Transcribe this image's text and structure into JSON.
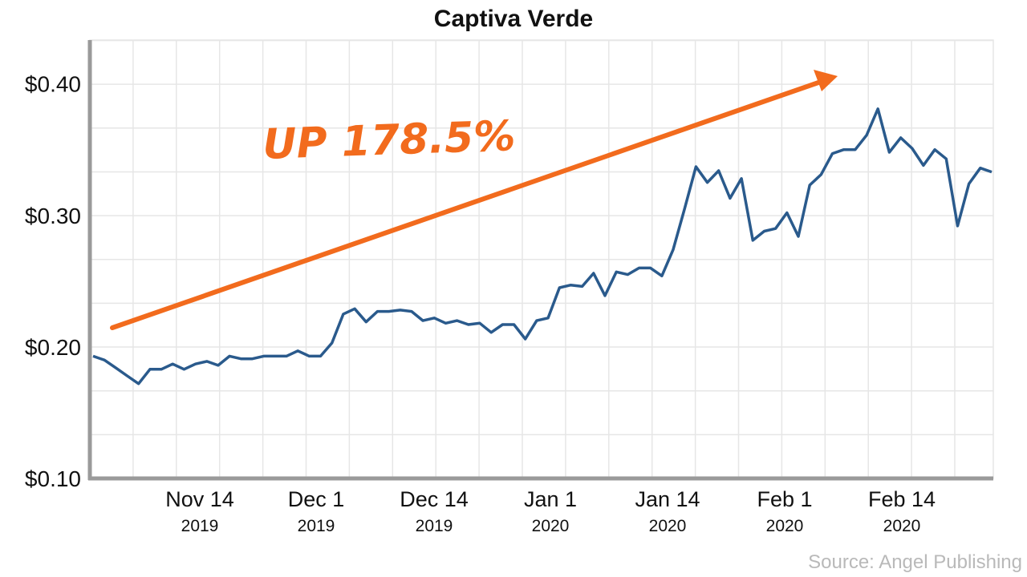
{
  "chart_data": {
    "type": "line",
    "title": "Captiva Verde",
    "xlabel": "",
    "ylabel": "",
    "ylim": [
      0.1,
      0.4
    ],
    "yticks": [
      "$0.10",
      "$0.20",
      "$0.30",
      "$0.40"
    ],
    "xticks": [
      {
        "label": "Nov 14",
        "year": "2019"
      },
      {
        "label": "Dec 1",
        "year": "2019"
      },
      {
        "label": "Dec 14",
        "year": "2019"
      },
      {
        "label": "Jan 1",
        "year": "2020"
      },
      {
        "label": "Jan 14",
        "year": "2020"
      },
      {
        "label": "Feb 1",
        "year": "2020"
      },
      {
        "label": "Feb 14",
        "year": "2020"
      }
    ],
    "grid": true,
    "series": [
      {
        "color": "#2a5a8c",
        "values": [
          0.193,
          0.19,
          0.184,
          0.178,
          0.172,
          0.183,
          0.183,
          0.187,
          0.183,
          0.187,
          0.189,
          0.186,
          0.193,
          0.191,
          0.191,
          0.193,
          0.193,
          0.193,
          0.197,
          0.193,
          0.193,
          0.203,
          0.225,
          0.229,
          0.219,
          0.227,
          0.227,
          0.228,
          0.227,
          0.22,
          0.222,
          0.218,
          0.22,
          0.217,
          0.218,
          0.211,
          0.217,
          0.217,
          0.206,
          0.22,
          0.222,
          0.245,
          0.247,
          0.246,
          0.256,
          0.239,
          0.257,
          0.255,
          0.26,
          0.26,
          0.254,
          0.274,
          0.305,
          0.337,
          0.325,
          0.334,
          0.313,
          0.328,
          0.281,
          0.288,
          0.29,
          0.302,
          0.284,
          0.323,
          0.331,
          0.347,
          0.35,
          0.35,
          0.361,
          0.381,
          0.348,
          0.359,
          0.351,
          0.338,
          0.35,
          0.343,
          0.292,
          0.324,
          0.336,
          0.333
        ]
      }
    ],
    "annotation": {
      "text": "UP 178.5%",
      "color": "#f26b1d"
    },
    "source": "Source: Angel Publishing"
  }
}
